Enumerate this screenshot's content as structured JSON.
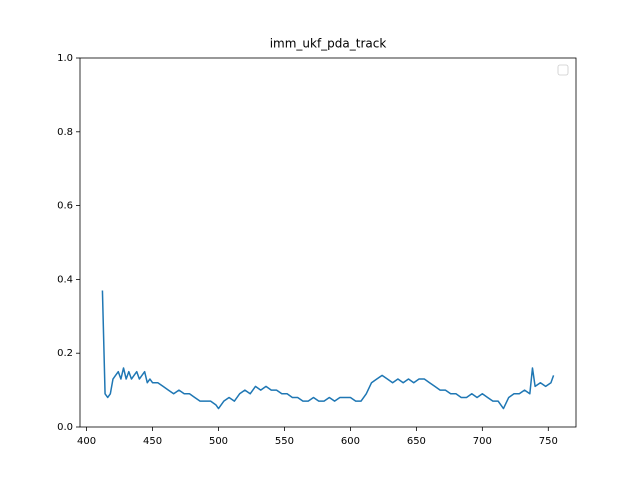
{
  "chart_data": {
    "type": "line",
    "title": "imm_ukf_pda_track",
    "x": [
      412,
      414,
      416,
      418,
      420,
      422,
      424,
      426,
      428,
      430,
      432,
      434,
      436,
      438,
      440,
      442,
      444,
      446,
      448,
      450,
      454,
      458,
      462,
      466,
      470,
      474,
      478,
      482,
      486,
      490,
      494,
      498,
      500,
      504,
      508,
      512,
      516,
      520,
      524,
      528,
      532,
      536,
      540,
      544,
      548,
      552,
      556,
      560,
      564,
      568,
      572,
      576,
      580,
      584,
      588,
      592,
      596,
      600,
      604,
      608,
      612,
      616,
      620,
      624,
      628,
      632,
      636,
      640,
      644,
      648,
      652,
      656,
      660,
      664,
      668,
      672,
      676,
      680,
      684,
      688,
      692,
      696,
      700,
      704,
      708,
      712,
      716,
      720,
      724,
      728,
      732,
      736,
      738,
      740,
      744,
      748,
      752,
      754
    ],
    "series": [
      {
        "color": "#1f77b4",
        "values": [
          0.37,
          0.09,
          0.08,
          0.09,
          0.13,
          0.14,
          0.15,
          0.13,
          0.16,
          0.13,
          0.15,
          0.13,
          0.14,
          0.15,
          0.13,
          0.14,
          0.15,
          0.12,
          0.13,
          0.12,
          0.12,
          0.11,
          0.1,
          0.09,
          0.1,
          0.09,
          0.09,
          0.08,
          0.07,
          0.07,
          0.07,
          0.06,
          0.05,
          0.07,
          0.08,
          0.07,
          0.09,
          0.1,
          0.09,
          0.11,
          0.1,
          0.11,
          0.1,
          0.1,
          0.09,
          0.09,
          0.08,
          0.08,
          0.07,
          0.07,
          0.08,
          0.07,
          0.07,
          0.08,
          0.07,
          0.08,
          0.08,
          0.08,
          0.07,
          0.07,
          0.09,
          0.12,
          0.13,
          0.14,
          0.13,
          0.12,
          0.13,
          0.12,
          0.13,
          0.12,
          0.13,
          0.13,
          0.12,
          0.11,
          0.1,
          0.1,
          0.09,
          0.09,
          0.08,
          0.08,
          0.09,
          0.08,
          0.09,
          0.08,
          0.07,
          0.07,
          0.05,
          0.08,
          0.09,
          0.09,
          0.1,
          0.09,
          0.16,
          0.11,
          0.12,
          0.11,
          0.12,
          0.14
        ]
      }
    ],
    "xlim": [
      395,
      771
    ],
    "ylim": [
      0,
      1
    ],
    "xticks": [
      400,
      450,
      500,
      550,
      600,
      650,
      700,
      750
    ],
    "yticks": [
      {
        "value": 0,
        "label": "0.0"
      },
      {
        "value": 0.2,
        "label": "0.2"
      },
      {
        "value": 0.4,
        "label": "0.4"
      },
      {
        "value": 0.6,
        "label": "0.6"
      },
      {
        "value": 0.8,
        "label": "0.8"
      },
      {
        "value": 1,
        "label": "1.0"
      }
    ],
    "legend": "upper right"
  }
}
